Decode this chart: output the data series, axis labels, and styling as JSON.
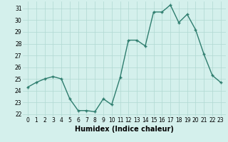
{
  "xlabel": "Humidex (Indice chaleur)",
  "x": [
    0,
    1,
    2,
    3,
    4,
    5,
    6,
    7,
    8,
    9,
    10,
    11,
    12,
    13,
    14,
    15,
    16,
    17,
    18,
    19,
    20,
    21,
    22,
    23
  ],
  "y": [
    24.3,
    24.7,
    25.0,
    25.2,
    25.0,
    23.3,
    22.3,
    22.3,
    22.2,
    23.3,
    22.8,
    25.1,
    28.3,
    28.3,
    27.8,
    30.7,
    30.7,
    31.3,
    29.8,
    30.5,
    29.2,
    27.1,
    25.3,
    24.7
  ],
  "line_color": "#2e7d6e",
  "marker": "+",
  "marker_size": 3.5,
  "marker_lw": 1.0,
  "bg_color": "#d4f0ec",
  "grid_color": "#b0d8d2",
  "ylim_min": 21.8,
  "ylim_max": 31.6,
  "yticks": [
    22,
    23,
    24,
    25,
    26,
    27,
    28,
    29,
    30,
    31
  ],
  "xticks": [
    0,
    1,
    2,
    3,
    4,
    5,
    6,
    7,
    8,
    9,
    10,
    11,
    12,
    13,
    14,
    15,
    16,
    17,
    18,
    19,
    20,
    21,
    22,
    23
  ],
  "tick_fontsize": 5.5,
  "xlabel_fontsize": 7.0,
  "line_width": 1.0
}
